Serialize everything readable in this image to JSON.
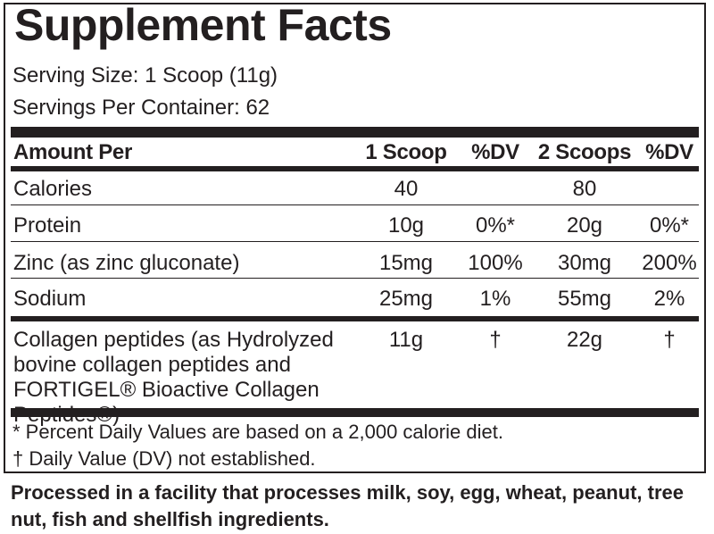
{
  "panel": {
    "title": "Supplement Facts",
    "serving_size": "Serving Size: 1 Scoop (11g)",
    "servings_per_container": "Servings Per Container: 62"
  },
  "table": {
    "headers": [
      "Amount Per",
      "1 Scoop",
      "%DV",
      "2 Scoops",
      "%DV"
    ],
    "rows": [
      {
        "name": "Calories",
        "one": "40",
        "one_dv": "",
        "two": "80",
        "two_dv": ""
      },
      {
        "name": "Protein",
        "one": "10g",
        "one_dv": "0%*",
        "two": "20g",
        "two_dv": "0%*"
      },
      {
        "name": "Zinc (as zinc gluconate)",
        "one": "15mg",
        "one_dv": "100%",
        "two": "30mg",
        "two_dv": "200%"
      },
      {
        "name": "Sodium",
        "one": "25mg",
        "one_dv": "1%",
        "two": "55mg",
        "two_dv": "2%"
      },
      {
        "name": "Collagen peptides (as Hydrolyzed bovine collagen peptides and FORTIGEL® Bioactive Collagen Peptides®)",
        "one": "11g",
        "one_dv": "†",
        "two": "22g",
        "two_dv": "†"
      }
    ]
  },
  "footnotes": {
    "percent_dv": "* Percent Daily Values are based on a 2,000 calorie diet.",
    "not_established": "† Daily Value (DV) not established."
  },
  "allergen_statement": "Processed in a facility that processes milk, soy, egg, wheat, peanut, tree nut, fish and shellfish ingredients."
}
